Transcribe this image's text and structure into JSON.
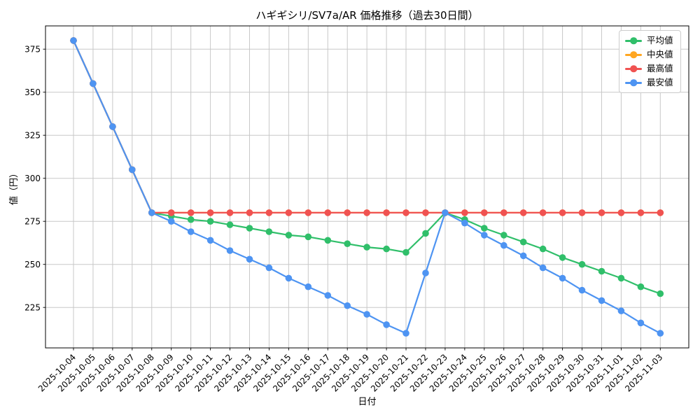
{
  "chart_data": {
    "type": "line",
    "title": "ハギギシリ/SV7a/AR 価格推移（過去30日間）",
    "xlabel": "日付",
    "ylabel": "値（円）",
    "x": [
      "2025-10-04",
      "2025-10-05",
      "2025-10-06",
      "2025-10-07",
      "2025-10-08",
      "2025-10-09",
      "2025-10-10",
      "2025-10-11",
      "2025-10-12",
      "2025-10-13",
      "2025-10-14",
      "2025-10-15",
      "2025-10-16",
      "2025-10-17",
      "2025-10-18",
      "2025-10-19",
      "2025-10-20",
      "2025-10-21",
      "2025-10-22",
      "2025-10-23",
      "2025-10-24",
      "2025-10-25",
      "2025-10-26",
      "2025-10-27",
      "2025-10-28",
      "2025-10-29",
      "2025-10-30",
      "2025-10-31",
      "2025-11-01",
      "2025-11-02",
      "2025-11-03"
    ],
    "series": [
      {
        "name": "平均値",
        "color": "#30bf6a",
        "values": [
          380,
          355,
          330,
          305,
          280,
          278,
          276,
          275,
          273,
          271,
          269,
          267,
          266,
          264,
          262,
          260,
          259,
          257,
          268,
          280,
          276,
          271,
          267,
          263,
          259,
          254,
          250,
          246,
          242,
          237,
          233
        ]
      },
      {
        "name": "中央値",
        "color": "#ffa621",
        "values": [
          380,
          355,
          330,
          305,
          280,
          280,
          280,
          280,
          280,
          280,
          280,
          280,
          280,
          280,
          280,
          280,
          280,
          280,
          280,
          280,
          280,
          280,
          280,
          280,
          280,
          280,
          280,
          280,
          280,
          280,
          280
        ]
      },
      {
        "name": "最高値",
        "color": "#f05251",
        "values": [
          380,
          355,
          330,
          305,
          280,
          280,
          280,
          280,
          280,
          280,
          280,
          280,
          280,
          280,
          280,
          280,
          280,
          280,
          280,
          280,
          280,
          280,
          280,
          280,
          280,
          280,
          280,
          280,
          280,
          280,
          280
        ]
      },
      {
        "name": "最安値",
        "color": "#4e94f2",
        "values": [
          380,
          355,
          330,
          305,
          280,
          275,
          269,
          264,
          258,
          253,
          248,
          242,
          237,
          232,
          226,
          221,
          215,
          210,
          245,
          280,
          274,
          267,
          261,
          255,
          248,
          242,
          235,
          229,
          223,
          216,
          210
        ]
      }
    ],
    "yticks": [
      225,
      250,
      275,
      300,
      325,
      350,
      375
    ],
    "ylim": [
      201.5,
      388.5
    ],
    "grid": true,
    "legend_position": "upper right",
    "grid_color": "#c8c8c8",
    "spine_color": "#000000",
    "background_color": "#ffffff"
  }
}
